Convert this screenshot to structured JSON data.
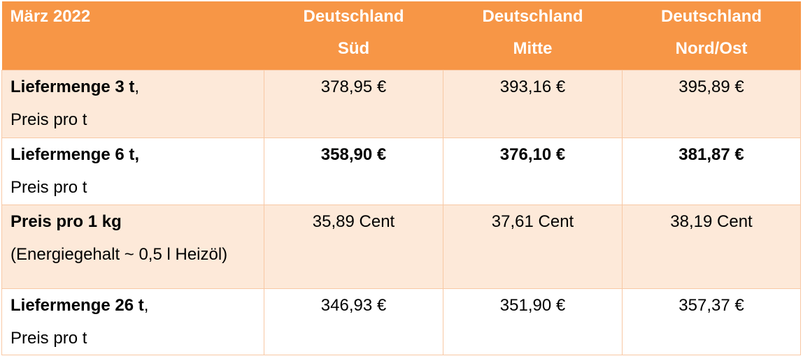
{
  "header": {
    "period": "März 2022",
    "regions": [
      {
        "line1": "Deutschland",
        "line2": "Süd"
      },
      {
        "line1": "Deutschland",
        "line2": "Mitte"
      },
      {
        "line1": "Deutschland",
        "line2": "Nord/Ost"
      }
    ]
  },
  "rows": [
    {
      "label_bold": "Liefermenge 3 t",
      "label_rest": ",",
      "sublabel": "Preis pro t",
      "values": [
        "378,95 €",
        "393,16 €",
        "395,89 €"
      ],
      "values_bold": false
    },
    {
      "label_bold": "Liefermenge 6 t,",
      "label_rest": "",
      "sublabel": "Preis pro t",
      "values": [
        "358,90 €",
        "376,10 €",
        "381,87 €"
      ],
      "values_bold": true
    },
    {
      "label_bold": "Preis pro 1 kg",
      "label_rest": "",
      "sublabel": "(Energiegehalt ~ 0,5 l Heizöl)",
      "values": [
        "35,89 Cent",
        "37,61 Cent",
        "38,19 Cent"
      ],
      "values_bold": false
    },
    {
      "label_bold": "Liefermenge 26 t",
      "label_rest": ",",
      "sublabel": "Preis pro t",
      "values": [
        "346,93 €",
        "351,90 €",
        "357,37 €"
      ],
      "values_bold": false
    }
  ],
  "colors": {
    "header_bg": "#f79646",
    "shade_bg": "#fde9d9",
    "border": "#f8c8a4"
  }
}
